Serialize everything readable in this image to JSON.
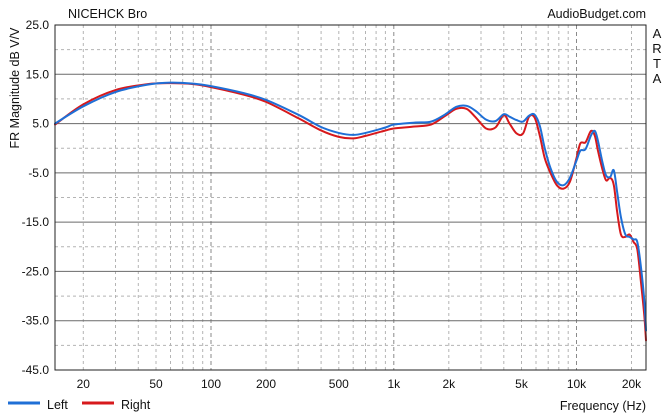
{
  "chart_data": {
    "type": "line",
    "title": "NICEHCK Bro",
    "source_label": "AudioBudget.com",
    "side_label": "ARTA",
    "xlabel": "Frequency (Hz)",
    "ylabel": "FR Magnitude dB V/V",
    "x_scale": "log",
    "xlim": [
      14,
      24000
    ],
    "ylim": [
      -45,
      25
    ],
    "grid": true,
    "legend_position": "bottom-left",
    "x_ticks": [
      {
        "value": 20,
        "label": "20"
      },
      {
        "value": 50,
        "label": "50"
      },
      {
        "value": 100,
        "label": "100"
      },
      {
        "value": 200,
        "label": "200"
      },
      {
        "value": 500,
        "label": "500"
      },
      {
        "value": 1000,
        "label": "1k"
      },
      {
        "value": 2000,
        "label": "2k"
      },
      {
        "value": 5000,
        "label": "5k"
      },
      {
        "value": 10000,
        "label": "10k"
      },
      {
        "value": 20000,
        "label": "20k"
      }
    ],
    "y_ticks": [
      {
        "value": 25,
        "label": "25.0"
      },
      {
        "value": 15,
        "label": "15.0"
      },
      {
        "value": 5,
        "label": "5.0"
      },
      {
        "value": -5,
        "label": "-5.0"
      },
      {
        "value": -15,
        "label": "-15.0"
      },
      {
        "value": -25,
        "label": "-25.0"
      },
      {
        "value": -35,
        "label": "-35.0"
      },
      {
        "value": -45,
        "label": "-45.0"
      }
    ],
    "series": [
      {
        "name": "Left",
        "color": "#1f6fd6",
        "points": [
          [
            14,
            5.0
          ],
          [
            20,
            8.5
          ],
          [
            30,
            11.4
          ],
          [
            45,
            12.9
          ],
          [
            60,
            13.3
          ],
          [
            80,
            13.1
          ],
          [
            100,
            12.6
          ],
          [
            150,
            11.2
          ],
          [
            200,
            9.8
          ],
          [
            300,
            6.8
          ],
          [
            400,
            4.3
          ],
          [
            500,
            3.1
          ],
          [
            600,
            2.7
          ],
          [
            700,
            3.1
          ],
          [
            900,
            4.2
          ],
          [
            1000,
            4.8
          ],
          [
            1300,
            5.2
          ],
          [
            1600,
            5.4
          ],
          [
            1900,
            6.8
          ],
          [
            2200,
            8.4
          ],
          [
            2500,
            8.6
          ],
          [
            2800,
            7.6
          ],
          [
            3200,
            5.8
          ],
          [
            3600,
            5.5
          ],
          [
            4000,
            6.9
          ],
          [
            4300,
            6.4
          ],
          [
            4700,
            5.7
          ],
          [
            5100,
            5.4
          ],
          [
            5500,
            6.6
          ],
          [
            5900,
            6.8
          ],
          [
            6300,
            4.5
          ],
          [
            6700,
            0.0
          ],
          [
            7200,
            -4.0
          ],
          [
            7800,
            -6.8
          ],
          [
            8500,
            -7.5
          ],
          [
            9200,
            -6.0
          ],
          [
            10000,
            -2.5
          ],
          [
            10500,
            -0.5
          ],
          [
            11200,
            -0.2
          ],
          [
            12000,
            2.6
          ],
          [
            12600,
            3.5
          ],
          [
            13100,
            1.5
          ],
          [
            13800,
            -2.5
          ],
          [
            14500,
            -5.5
          ],
          [
            15300,
            -5.8
          ],
          [
            16000,
            -4.5
          ],
          [
            16700,
            -9.0
          ],
          [
            17500,
            -14.0
          ],
          [
            18500,
            -17.5
          ],
          [
            19500,
            -18.0
          ],
          [
            20500,
            -18.5
          ],
          [
            21500,
            -19.0
          ],
          [
            22500,
            -24.0
          ],
          [
            23500,
            -31.0
          ],
          [
            24000,
            -37.0
          ]
        ]
      },
      {
        "name": "Right",
        "color": "#d7191c",
        "points": [
          [
            14,
            4.8
          ],
          [
            20,
            8.9
          ],
          [
            30,
            11.8
          ],
          [
            45,
            13.0
          ],
          [
            60,
            13.2
          ],
          [
            80,
            13.0
          ],
          [
            100,
            12.4
          ],
          [
            150,
            10.9
          ],
          [
            200,
            9.4
          ],
          [
            300,
            6.1
          ],
          [
            400,
            3.6
          ],
          [
            500,
            2.3
          ],
          [
            600,
            2.0
          ],
          [
            700,
            2.5
          ],
          [
            900,
            3.6
          ],
          [
            1000,
            4.0
          ],
          [
            1300,
            4.4
          ],
          [
            1600,
            4.8
          ],
          [
            1900,
            6.5
          ],
          [
            2200,
            8.0
          ],
          [
            2500,
            8.0
          ],
          [
            2800,
            6.3
          ],
          [
            3200,
            4.0
          ],
          [
            3600,
            4.2
          ],
          [
            4000,
            6.7
          ],
          [
            4300,
            5.0
          ],
          [
            4700,
            3.0
          ],
          [
            5100,
            3.0
          ],
          [
            5500,
            6.4
          ],
          [
            5900,
            6.2
          ],
          [
            6300,
            2.5
          ],
          [
            6700,
            -2.0
          ],
          [
            7200,
            -5.0
          ],
          [
            7800,
            -7.5
          ],
          [
            8500,
            -8.2
          ],
          [
            9200,
            -6.8
          ],
          [
            10000,
            -2.0
          ],
          [
            10500,
            1.0
          ],
          [
            11200,
            1.2
          ],
          [
            12000,
            3.5
          ],
          [
            12600,
            2.5
          ],
          [
            13100,
            -0.5
          ],
          [
            13800,
            -4.0
          ],
          [
            14500,
            -6.5
          ],
          [
            15300,
            -6.0
          ],
          [
            16000,
            -7.5
          ],
          [
            16700,
            -13.0
          ],
          [
            17500,
            -17.5
          ],
          [
            18500,
            -18.0
          ],
          [
            19500,
            -17.5
          ],
          [
            20500,
            -19.0
          ],
          [
            21500,
            -20.5
          ],
          [
            22500,
            -27.0
          ],
          [
            23500,
            -34.0
          ],
          [
            24000,
            -39.0
          ]
        ]
      }
    ]
  }
}
